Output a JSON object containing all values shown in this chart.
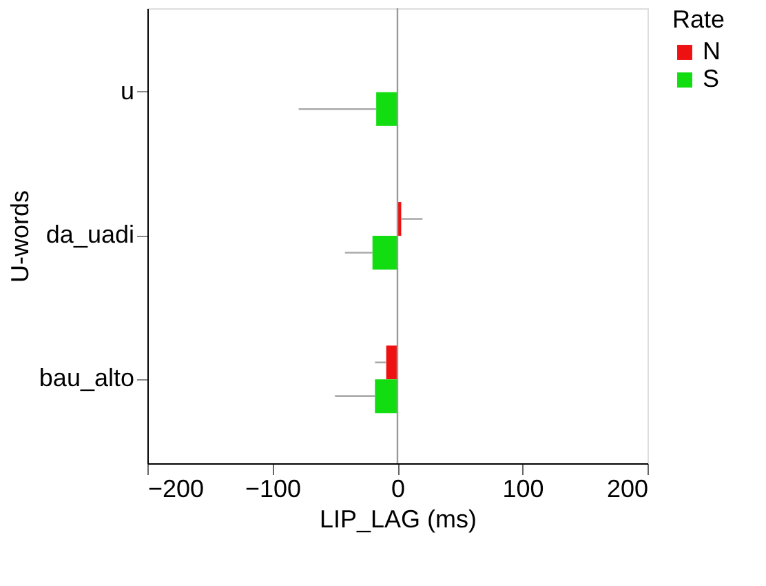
{
  "chart_data": {
    "type": "bar",
    "orientation": "horizontal",
    "xlabel": "LIP_LAG (ms)",
    "ylabel": "U-words",
    "legend_title": "Rate",
    "categories": [
      "u",
      "da_uadi",
      "bau_alto"
    ],
    "series": [
      {
        "name": "N",
        "color": "#ee1111",
        "values": [
          null,
          3,
          -9
        ],
        "errors": [
          null,
          [
            3,
            20
          ],
          [
            -18,
            -9
          ]
        ]
      },
      {
        "name": "S",
        "color": "#11dd11",
        "values": [
          -17,
          -20,
          -18
        ],
        "errors": [
          [
            -79,
            -17
          ],
          [
            -42,
            -20
          ],
          [
            -50,
            -18
          ]
        ]
      }
    ],
    "xlim": [
      -200,
      200
    ],
    "xticks": [
      -200,
      -100,
      0,
      100,
      200
    ],
    "ref_lines": [
      {
        "axis": "x",
        "value": 0,
        "color": "#999999"
      }
    ],
    "grid": false,
    "legend": "right"
  }
}
